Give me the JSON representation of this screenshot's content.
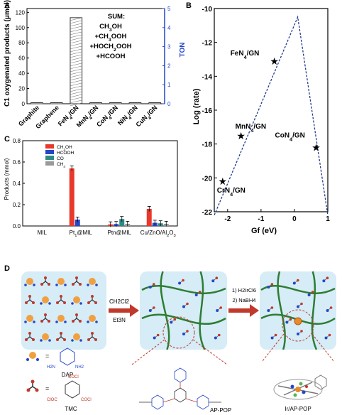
{
  "panels": {
    "A": "A",
    "B": "B",
    "C": "C",
    "D": "D"
  },
  "chart_data": [
    {
      "type": "bar",
      "panel": "A",
      "categories": [
        "Graphite",
        "Graphene",
        "FeN4/GN",
        "MnN4/GN",
        "CoN4/GN",
        "NiN4/GN",
        "CuN4/GN"
      ],
      "values": [
        0,
        0,
        113,
        0,
        0,
        0,
        0
      ],
      "ylabel": "C1 oxygenated products (μmol)",
      "ylabel2": "TON",
      "ylim": [
        0,
        125
      ],
      "yticks": [
        "0",
        "20",
        "40",
        "60",
        "80",
        "100",
        "120"
      ],
      "y2lim": [
        0,
        5
      ],
      "y2ticks": [
        "0",
        "1",
        "2",
        "3",
        "4",
        "5"
      ],
      "annotation": [
        "SUM:",
        "CH3OH",
        "+CH3OOH",
        "+HOCH2OOH",
        "+HCOOH"
      ]
    },
    {
      "type": "scatter",
      "panel": "B",
      "xlabel": "Gf (eV)",
      "ylabel": "Log (rate)",
      "xlim": [
        -2.4,
        1
      ],
      "ylim": [
        -22,
        -10
      ],
      "xticks": [
        "-2",
        "-1",
        "0",
        "1"
      ],
      "yticks": [
        "-10",
        "-12",
        "-14",
        "-16",
        "-18",
        "-20",
        "-22"
      ],
      "points": [
        {
          "label": "FeN4/GN",
          "x": -0.6,
          "y": -13.1
        },
        {
          "label": "MnN4/GN",
          "x": -1.6,
          "y": -17.5
        },
        {
          "label": "CoN4/GN",
          "x": 0.65,
          "y": -18.2
        },
        {
          "label": "CrN4/GN",
          "x": -2.15,
          "y": -20.2
        }
      ],
      "volcano": [
        [
          -2.4,
          -22.2
        ],
        [
          0.1,
          -10.5
        ],
        [
          1,
          -22.2
        ]
      ]
    },
    {
      "type": "bar",
      "panel": "C",
      "ylabel": "Products (mmol)",
      "ylim": [
        0,
        0.8
      ],
      "yticks": [
        "0.0",
        "0.2",
        "0.4",
        "0.6",
        "0.8"
      ],
      "categories": [
        "MIL",
        "Pt1@MIL",
        "Ptn@MIL",
        "Cu/ZnO/Al2O3"
      ],
      "series": [
        {
          "name": "CH3OH",
          "color": "#e8392b",
          "values": [
            0,
            0.54,
            0.015,
            0.16
          ]
        },
        {
          "name": "HCOOH",
          "color": "#2546c9",
          "values": [
            0,
            0.06,
            0.018,
            0.03
          ]
        },
        {
          "name": "CO",
          "color": "#2e8a84",
          "values": [
            0,
            0,
            0.065,
            0.025
          ]
        },
        {
          "name": "CH4",
          "color": "#9a9a9a",
          "values": [
            0,
            0,
            0.02,
            0.02
          ]
        }
      ]
    }
  ],
  "scheme": {
    "step1_top": "CH2Cl2",
    "step1_bottom": "Et3N",
    "step2_top": "1) H2IrCl6",
    "step2_bottom": "2) NaBH4",
    "legend_dap": "DAP",
    "legend_tmc": "TMC",
    "equals": "=",
    "label_appop": "AP-POP",
    "label_irappop": "Ir/AP-POP",
    "nh2_left": "H2N",
    "nh2_right": "NH2",
    "cocl": "COCl",
    "clco": "ClOC"
  }
}
